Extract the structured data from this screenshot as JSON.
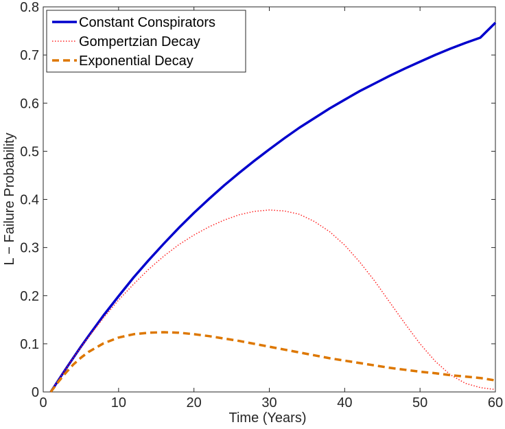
{
  "chart_data": {
    "type": "line",
    "title": "",
    "xlabel": "Time (Years)",
    "ylabel": "L − Failure Probability",
    "xlim": [
      0,
      60
    ],
    "ylim": [
      0,
      0.8
    ],
    "xticks": [
      0,
      10,
      20,
      30,
      40,
      50,
      60
    ],
    "yticks": [
      0,
      0.1,
      0.2,
      0.3,
      0.4,
      0.5,
      0.6,
      0.7,
      0.8
    ],
    "xtick_labels": [
      "0",
      "10",
      "20",
      "30",
      "40",
      "50",
      "60"
    ],
    "ytick_labels": [
      "0",
      "0.1",
      "0.2",
      "0.3",
      "0.4",
      "0.5",
      "0.6",
      "0.7",
      "0.8"
    ],
    "grid": false,
    "legend_position": "top-left",
    "x": [
      1,
      2,
      3,
      4,
      5,
      6,
      8,
      10,
      12,
      14,
      16,
      18,
      20,
      22,
      24,
      26,
      28,
      30,
      32,
      34,
      36,
      38,
      40,
      42,
      44,
      46,
      48,
      50,
      52,
      54,
      56,
      58,
      60
    ],
    "series": [
      {
        "name": "Constant Conspirators",
        "color": "#0000cc",
        "style": "solid",
        "values": [
          0.0,
          0.024,
          0.048,
          0.071,
          0.094,
          0.116,
          0.159,
          0.199,
          0.238,
          0.274,
          0.308,
          0.341,
          0.372,
          0.401,
          0.429,
          0.455,
          0.48,
          0.504,
          0.527,
          0.549,
          0.569,
          0.589,
          0.607,
          0.625,
          0.641,
          0.657,
          0.672,
          0.686,
          0.7,
          0.713,
          0.725,
          0.736,
          0.767
        ]
      },
      {
        "name": "Gompertzian Decay",
        "color": "#ff2020",
        "style": "dotted",
        "values": [
          0.0,
          0.024,
          0.048,
          0.071,
          0.093,
          0.114,
          0.154,
          0.191,
          0.224,
          0.255,
          0.282,
          0.306,
          0.326,
          0.343,
          0.357,
          0.368,
          0.375,
          0.378,
          0.376,
          0.369,
          0.354,
          0.333,
          0.305,
          0.27,
          0.23,
          0.186,
          0.142,
          0.1,
          0.064,
          0.036,
          0.018,
          0.009,
          0.005
        ]
      },
      {
        "name": "Exponential Decay",
        "color": "#dd7700",
        "style": "dashed",
        "values": [
          0.0,
          0.021,
          0.04,
          0.057,
          0.071,
          0.083,
          0.101,
          0.113,
          0.12,
          0.123,
          0.124,
          0.123,
          0.12,
          0.116,
          0.111,
          0.106,
          0.1,
          0.094,
          0.088,
          0.082,
          0.076,
          0.07,
          0.065,
          0.06,
          0.055,
          0.05,
          0.046,
          0.042,
          0.039,
          0.035,
          0.032,
          0.029,
          0.024
        ]
      }
    ]
  }
}
